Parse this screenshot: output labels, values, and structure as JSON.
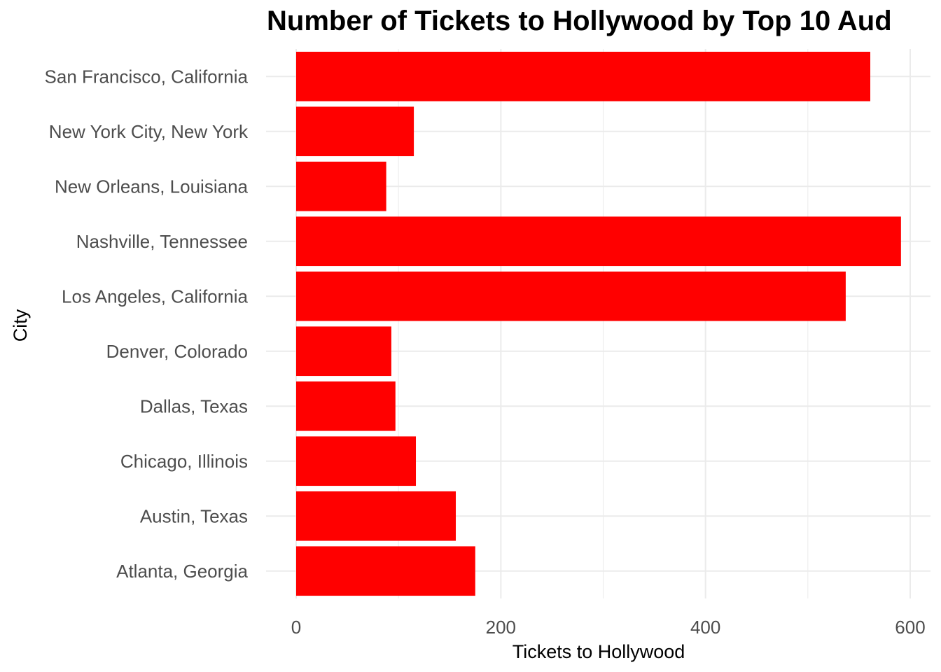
{
  "chart_data": {
    "type": "bar",
    "orientation": "horizontal",
    "title": "Number of Tickets to Hollywood by Top 10 Aud",
    "xlabel": "Tickets to Hollywood",
    "ylabel": "City",
    "categories": [
      "Atlanta, Georgia",
      "Austin, Texas",
      "Chicago, Illinois",
      "Dallas, Texas",
      "Denver, Colorado",
      "Los Angeles, California",
      "Nashville, Tennessee",
      "New Orleans, Louisiana",
      "New York City, New York",
      "San Francisco, California"
    ],
    "values": [
      175,
      156,
      117,
      97,
      93,
      537,
      591,
      88,
      115,
      561
    ],
    "xlim": [
      0,
      620
    ],
    "xticks": [
      0,
      200,
      400,
      600
    ],
    "grid": true,
    "legend": "none",
    "bar_color": "#ff0000",
    "grid_color": "#ebebeb"
  }
}
